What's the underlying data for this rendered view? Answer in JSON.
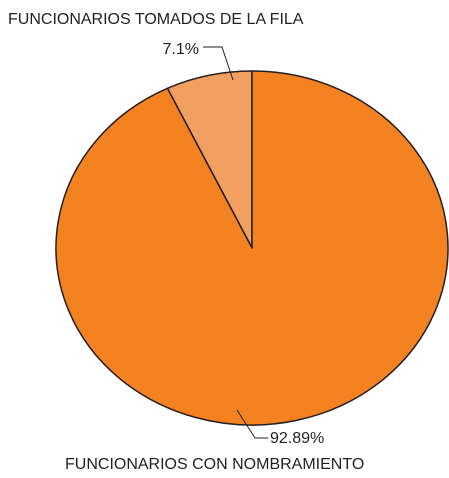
{
  "chart_data": {
    "type": "pie",
    "categories": [
      "FUNCIONARIOS TOMADOS DE LA FILA",
      "FUNCIONARIOS CON NOMBRAMIENTO"
    ],
    "values": [
      7.1,
      92.89
    ],
    "value_labels": [
      "7.1%",
      "92.89%"
    ],
    "colors": [
      "#f1a061",
      "#f58220"
    ]
  }
}
